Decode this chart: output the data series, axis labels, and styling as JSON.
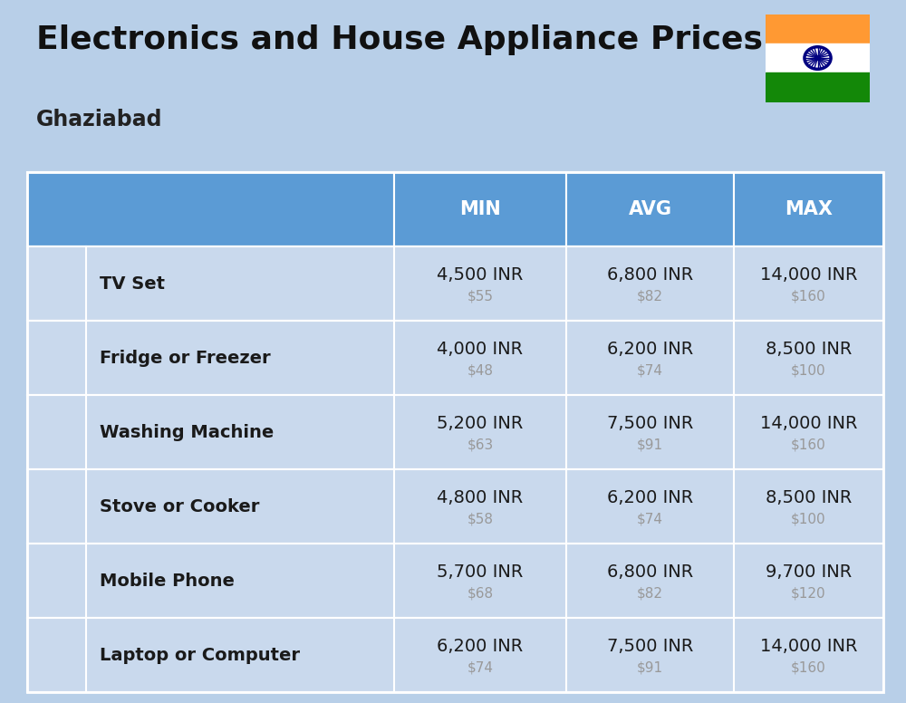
{
  "title": "Electronics and House Appliance Prices",
  "subtitle": "Ghaziabad",
  "bg_color": "#b8cfe8",
  "header_color": "#5b9bd5",
  "row_bg_color": "#c9d9ed",
  "header_text_color": "#ffffff",
  "item_text_color": "#1a1a1a",
  "usd_text_color": "#999999",
  "col_headers": [
    "MIN",
    "AVG",
    "MAX"
  ],
  "items": [
    {
      "name": "TV Set",
      "min_inr": "4,500 INR",
      "min_usd": "$55",
      "avg_inr": "6,800 INR",
      "avg_usd": "$82",
      "max_inr": "14,000 INR",
      "max_usd": "$160"
    },
    {
      "name": "Fridge or Freezer",
      "min_inr": "4,000 INR",
      "min_usd": "$48",
      "avg_inr": "6,200 INR",
      "avg_usd": "$74",
      "max_inr": "8,500 INR",
      "max_usd": "$100"
    },
    {
      "name": "Washing Machine",
      "min_inr": "5,200 INR",
      "min_usd": "$63",
      "avg_inr": "7,500 INR",
      "avg_usd": "$91",
      "max_inr": "14,000 INR",
      "max_usd": "$160"
    },
    {
      "name": "Stove or Cooker",
      "min_inr": "4,800 INR",
      "min_usd": "$58",
      "avg_inr": "6,200 INR",
      "avg_usd": "$74",
      "max_inr": "8,500 INR",
      "max_usd": "$100"
    },
    {
      "name": "Mobile Phone",
      "min_inr": "5,700 INR",
      "min_usd": "$68",
      "avg_inr": "6,800 INR",
      "avg_usd": "$82",
      "max_inr": "9,700 INR",
      "max_usd": "$120"
    },
    {
      "name": "Laptop or Computer",
      "min_inr": "6,200 INR",
      "min_usd": "$74",
      "avg_inr": "7,500 INR",
      "avg_usd": "$91",
      "max_inr": "14,000 INR",
      "max_usd": "$160"
    }
  ],
  "flag_colors": {
    "orange": "#FF9933",
    "white": "#FFFFFF",
    "green": "#138808",
    "navy": "#000080"
  },
  "title_fontsize": 26,
  "subtitle_fontsize": 17,
  "header_fontsize": 15,
  "name_fontsize": 14,
  "inr_fontsize": 14,
  "usd_fontsize": 11
}
